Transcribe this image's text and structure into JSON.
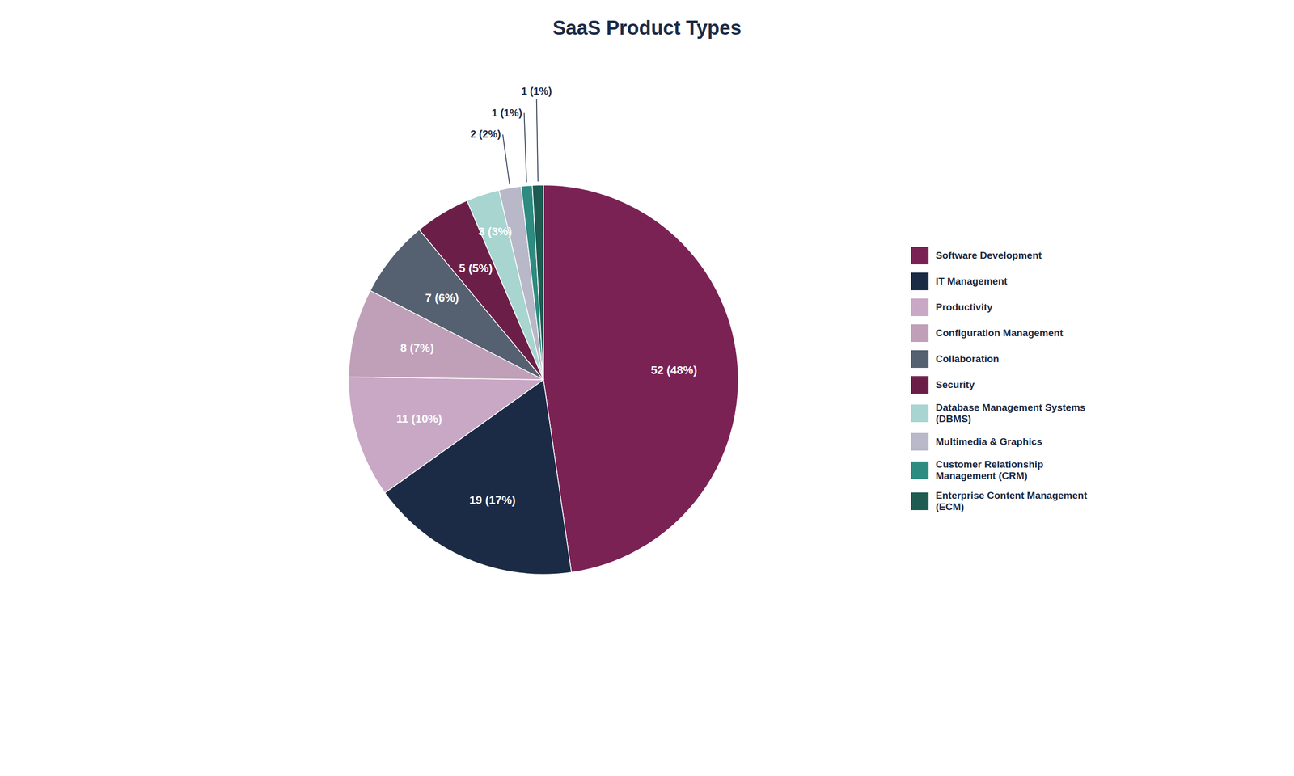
{
  "chart_data": {
    "type": "pie",
    "title": "SaaS Product Types",
    "categories": [
      "Software Development",
      "IT Management",
      "Productivity",
      "Configuration Management",
      "Collaboration",
      "Security",
      "Database Management Systems\n(DBMS)",
      "Multimedia & Graphics",
      "Customer Relationship\nManagement (CRM)",
      "Enterprise Content Management\n(ECM)"
    ],
    "values": [
      52,
      19,
      11,
      8,
      7,
      5,
      3,
      2,
      1,
      1
    ],
    "value_labels": [
      "52 (48%)",
      "19 (17%)",
      "11 (10%)",
      "8 (7%)",
      "7 (6%)",
      "5 (5%)",
      "3 (3%)",
      "2 (2%)",
      "1 (1%)",
      "1 (1%)"
    ],
    "colors": [
      "#7B2255",
      "#1C2B45",
      "#C9A8C5",
      "#C0A0B8",
      "#556070",
      "#6B1F48",
      "#A8D5D0",
      "#B8B8C8",
      "#2E8B80",
      "#1E5C52"
    ],
    "data_labels": true,
    "legend": "right"
  }
}
